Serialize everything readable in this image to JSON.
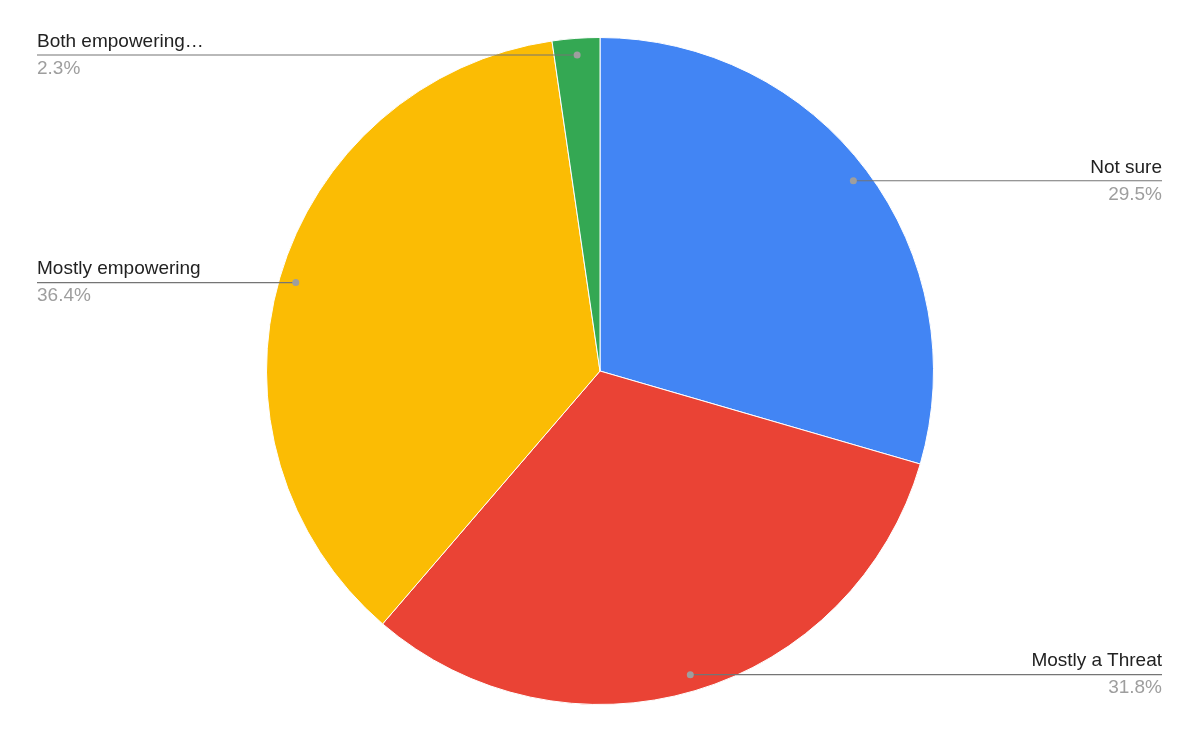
{
  "chart_data": {
    "type": "pie",
    "categories": [
      "Not sure",
      "Mostly a Threat",
      "Mostly empowering",
      "Both empowering…"
    ],
    "values": [
      29.5,
      31.8,
      36.4,
      2.3
    ],
    "colors": [
      "#4285f4",
      "#ea4335",
      "#fbbc04",
      "#34a853"
    ],
    "value_labels": [
      "29.5%",
      "31.8%",
      "36.4%",
      "2.3%"
    ]
  }
}
